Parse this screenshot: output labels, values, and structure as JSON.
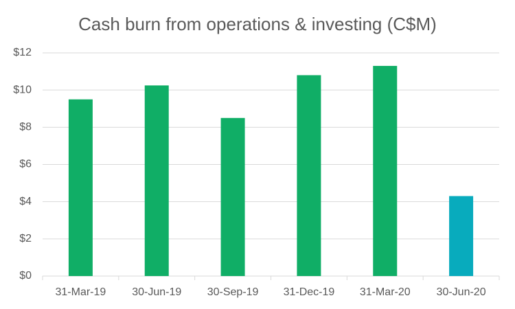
{
  "chart_data": {
    "type": "bar",
    "title": "Cash burn from operations & investing (C$M)",
    "categories": [
      "31-Mar-19",
      "30-Jun-19",
      "30-Sep-19",
      "31-Dec-19",
      "31-Mar-20",
      "30-Jun-20"
    ],
    "values": [
      9.5,
      10.25,
      8.5,
      10.8,
      11.3,
      4.3
    ],
    "colors": [
      "#10ae66",
      "#10ae66",
      "#10ae66",
      "#10ae66",
      "#10ae66",
      "#08abbd"
    ],
    "ylim": [
      0,
      12
    ],
    "yticks": [
      {
        "value": 0,
        "label": "$0"
      },
      {
        "value": 2,
        "label": "$2"
      },
      {
        "value": 4,
        "label": "$4"
      },
      {
        "value": 6,
        "label": "$6"
      },
      {
        "value": 8,
        "label": "$8"
      },
      {
        "value": 10,
        "label": "$10"
      },
      {
        "value": 12,
        "label": "$12"
      }
    ],
    "grid": true
  }
}
